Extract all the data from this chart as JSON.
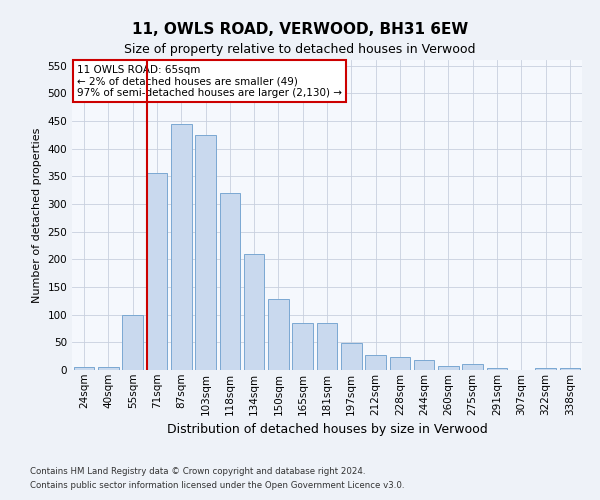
{
  "title": "11, OWLS ROAD, VERWOOD, BH31 6EW",
  "subtitle": "Size of property relative to detached houses in Verwood",
  "xlabel": "Distribution of detached houses by size in Verwood",
  "ylabel": "Number of detached properties",
  "categories": [
    "24sqm",
    "40sqm",
    "55sqm",
    "71sqm",
    "87sqm",
    "103sqm",
    "118sqm",
    "134sqm",
    "150sqm",
    "165sqm",
    "181sqm",
    "197sqm",
    "212sqm",
    "228sqm",
    "244sqm",
    "260sqm",
    "275sqm",
    "291sqm",
    "307sqm",
    "322sqm",
    "338sqm"
  ],
  "values": [
    5,
    5,
    100,
    355,
    445,
    425,
    320,
    210,
    128,
    85,
    85,
    48,
    28,
    23,
    18,
    8,
    10,
    3,
    0,
    3,
    3
  ],
  "bar_color": "#c9d9ee",
  "bar_edge_color": "#7aa8d2",
  "vline_position": 2.575,
  "vline_color": "#cc0000",
  "annotation_text": "11 OWLS ROAD: 65sqm\n← 2% of detached houses are smaller (49)\n97% of semi-detached houses are larger (2,130) →",
  "annotation_box_facecolor": "#ffffff",
  "annotation_box_edgecolor": "#cc0000",
  "ylim": [
    0,
    560
  ],
  "yticks": [
    0,
    50,
    100,
    150,
    200,
    250,
    300,
    350,
    400,
    450,
    500,
    550
  ],
  "footnote1": "Contains HM Land Registry data © Crown copyright and database right 2024.",
  "footnote2": "Contains public sector information licensed under the Open Government Licence v3.0.",
  "bg_color": "#eef2f8",
  "plot_bg_color": "#f5f8fd",
  "grid_color": "#c8d0de",
  "title_fontsize": 11,
  "subtitle_fontsize": 9,
  "xlabel_fontsize": 9,
  "ylabel_fontsize": 8,
  "tick_fontsize": 7.5,
  "annotation_fontsize": 7.5
}
